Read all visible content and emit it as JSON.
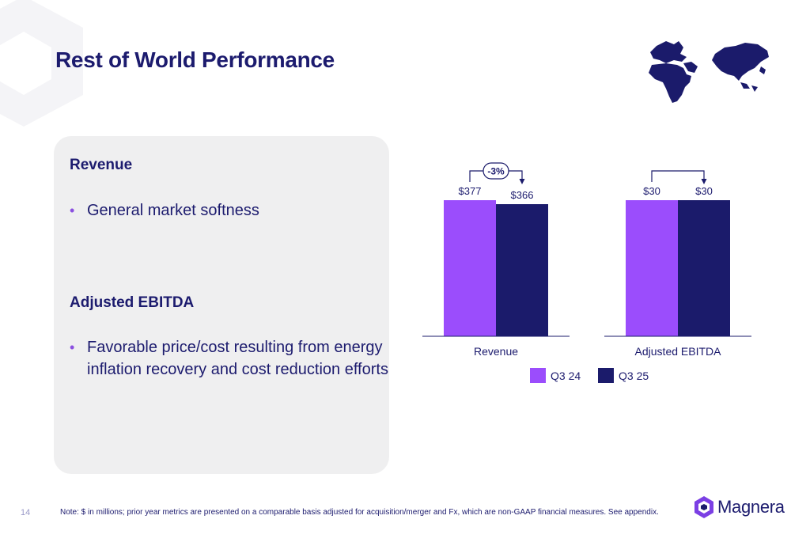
{
  "page": {
    "title": "Rest of World Performance",
    "page_number": "14",
    "footnote": "Note: $ in millions; prior year metrics are presented on a comparable basis adjusted for acquisition/merger and Fx, which are non-GAAP financial measures.  See appendix.",
    "brand": "Magnera"
  },
  "panel": {
    "revenue_heading": "Revenue",
    "revenue_bullet": "General market softness",
    "ebitda_heading": "Adjusted EBITDA",
    "ebitda_bullet": "Favorable price/cost resulting from energy inflation recovery and cost reduction efforts"
  },
  "colors": {
    "q3_24": "#9b4dfc",
    "q3_25": "#1b1b6b",
    "title": "#1c1b6e",
    "panel_bg": "#efeff0"
  },
  "icons": [
    "world-map-icon",
    "magnera-logo-icon"
  ],
  "chart_data": {
    "type": "bar",
    "categories": [
      "Revenue",
      "Adjusted EBITDA"
    ],
    "series": [
      {
        "name": "Q3 24",
        "values": [
          377,
          30
        ],
        "labels": [
          "$377",
          "$30"
        ]
      },
      {
        "name": "Q3 25",
        "values": [
          366,
          30
        ],
        "labels": [
          "$366",
          "$30"
        ]
      }
    ],
    "annotations": [
      "-3%",
      ""
    ],
    "legend": "bottom-center",
    "grid": false,
    "scale": "independent per category"
  }
}
